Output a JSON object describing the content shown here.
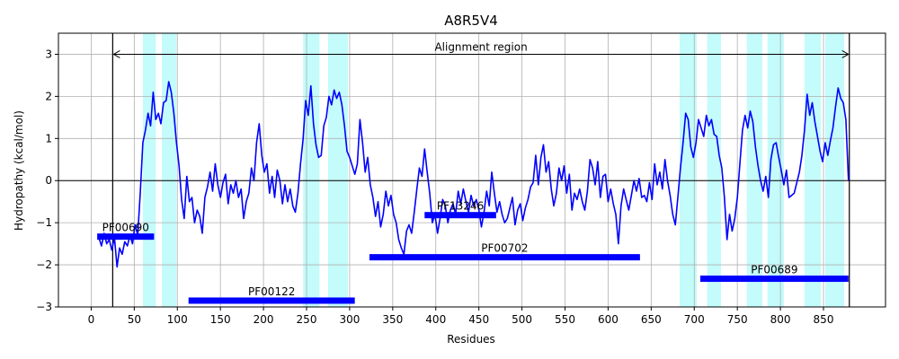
{
  "chart_data": {
    "type": "line",
    "title": "A8R5V4",
    "xlabel": "Residues",
    "ylabel": "Hydropathy (kcal/mol)",
    "xlim": [
      -38,
      922
    ],
    "ylim": [
      -3,
      3.5
    ],
    "xticks": [
      0,
      50,
      100,
      150,
      200,
      250,
      300,
      350,
      400,
      450,
      500,
      550,
      600,
      650,
      700,
      750,
      800,
      850
    ],
    "yticks": [
      -3,
      -2,
      -1,
      0,
      1,
      2,
      3
    ],
    "grid": true,
    "zero_line": true,
    "series": [
      {
        "color": "#0000ff",
        "points": [
          [
            9,
            -1.35
          ],
          [
            12,
            -1.55
          ],
          [
            15,
            -1.25
          ],
          [
            18,
            -1.5
          ],
          [
            21,
            -1.4
          ],
          [
            24,
            -1.65
          ],
          [
            27,
            -1.35
          ],
          [
            30,
            -2.05
          ],
          [
            33,
            -1.6
          ],
          [
            36,
            -1.75
          ],
          [
            39,
            -1.45
          ],
          [
            42,
            -1.55
          ],
          [
            45,
            -1.3
          ],
          [
            48,
            -1.5
          ],
          [
            51,
            -1.05
          ],
          [
            54,
            -1.3
          ],
          [
            57,
            -0.3
          ],
          [
            60,
            0.9
          ],
          [
            63,
            1.2
          ],
          [
            66,
            1.6
          ],
          [
            69,
            1.3
          ],
          [
            72,
            2.1
          ],
          [
            75,
            1.45
          ],
          [
            78,
            1.6
          ],
          [
            81,
            1.35
          ],
          [
            84,
            1.85
          ],
          [
            87,
            1.9
          ],
          [
            90,
            2.35
          ],
          [
            93,
            2.1
          ],
          [
            96,
            1.6
          ],
          [
            99,
            0.9
          ],
          [
            102,
            0.35
          ],
          [
            105,
            -0.45
          ],
          [
            108,
            -0.9
          ],
          [
            111,
            0.1
          ],
          [
            114,
            -0.5
          ],
          [
            117,
            -0.4
          ],
          [
            120,
            -1.0
          ],
          [
            123,
            -0.7
          ],
          [
            126,
            -0.85
          ],
          [
            129,
            -1.25
          ],
          [
            132,
            -0.4
          ],
          [
            135,
            -0.15
          ],
          [
            138,
            0.2
          ],
          [
            141,
            -0.25
          ],
          [
            144,
            0.4
          ],
          [
            147,
            -0.1
          ],
          [
            150,
            -0.4
          ],
          [
            153,
            -0.05
          ],
          [
            156,
            0.15
          ],
          [
            159,
            -0.55
          ],
          [
            162,
            -0.1
          ],
          [
            165,
            -0.3
          ],
          [
            168,
            0.0
          ],
          [
            171,
            -0.4
          ],
          [
            174,
            -0.2
          ],
          [
            177,
            -0.9
          ],
          [
            180,
            -0.5
          ],
          [
            183,
            -0.3
          ],
          [
            186,
            0.3
          ],
          [
            189,
            0.0
          ],
          [
            192,
            0.9
          ],
          [
            195,
            1.35
          ],
          [
            198,
            0.6
          ],
          [
            201,
            0.2
          ],
          [
            204,
            0.4
          ],
          [
            207,
            -0.3
          ],
          [
            210,
            0.1
          ],
          [
            213,
            -0.4
          ],
          [
            216,
            0.25
          ],
          [
            219,
            0.0
          ],
          [
            222,
            -0.55
          ],
          [
            225,
            -0.1
          ],
          [
            228,
            -0.5
          ],
          [
            231,
            -0.2
          ],
          [
            234,
            -0.6
          ],
          [
            237,
            -0.75
          ],
          [
            240,
            -0.3
          ],
          [
            243,
            0.4
          ],
          [
            246,
            1.0
          ],
          [
            249,
            1.9
          ],
          [
            252,
            1.55
          ],
          [
            255,
            2.25
          ],
          [
            258,
            1.35
          ],
          [
            261,
            0.85
          ],
          [
            264,
            0.55
          ],
          [
            267,
            0.6
          ],
          [
            270,
            1.3
          ],
          [
            273,
            1.5
          ],
          [
            276,
            2.0
          ],
          [
            279,
            1.8
          ],
          [
            282,
            2.15
          ],
          [
            285,
            1.95
          ],
          [
            288,
            2.1
          ],
          [
            291,
            1.8
          ],
          [
            294,
            1.3
          ],
          [
            297,
            0.7
          ],
          [
            300,
            0.55
          ],
          [
            303,
            0.35
          ],
          [
            306,
            0.15
          ],
          [
            309,
            0.4
          ],
          [
            312,
            1.45
          ],
          [
            315,
            0.9
          ],
          [
            318,
            0.2
          ],
          [
            321,
            0.55
          ],
          [
            324,
            -0.1
          ],
          [
            327,
            -0.4
          ],
          [
            330,
            -0.85
          ],
          [
            333,
            -0.5
          ],
          [
            336,
            -1.1
          ],
          [
            339,
            -0.8
          ],
          [
            342,
            -0.25
          ],
          [
            345,
            -0.6
          ],
          [
            348,
            -0.35
          ],
          [
            351,
            -0.8
          ],
          [
            354,
            -1.0
          ],
          [
            357,
            -1.4
          ],
          [
            360,
            -1.6
          ],
          [
            363,
            -1.75
          ],
          [
            366,
            -1.2
          ],
          [
            369,
            -1.05
          ],
          [
            372,
            -1.25
          ],
          [
            375,
            -0.75
          ],
          [
            378,
            -0.2
          ],
          [
            381,
            0.3
          ],
          [
            384,
            0.1
          ],
          [
            387,
            0.75
          ],
          [
            390,
            0.2
          ],
          [
            393,
            -0.3
          ],
          [
            396,
            -1.0
          ],
          [
            399,
            -0.8
          ],
          [
            402,
            -1.25
          ],
          [
            405,
            -0.9
          ],
          [
            408,
            -0.45
          ],
          [
            411,
            -0.6
          ],
          [
            414,
            -1.0
          ],
          [
            417,
            -0.7
          ],
          [
            420,
            -0.55
          ],
          [
            423,
            -0.8
          ],
          [
            426,
            -0.25
          ],
          [
            429,
            -0.55
          ],
          [
            432,
            -0.2
          ],
          [
            435,
            -0.5
          ],
          [
            438,
            -0.75
          ],
          [
            441,
            -0.35
          ],
          [
            444,
            -0.6
          ],
          [
            447,
            -0.45
          ],
          [
            450,
            -0.7
          ],
          [
            453,
            -1.1
          ],
          [
            456,
            -0.75
          ],
          [
            459,
            -0.25
          ],
          [
            462,
            -0.6
          ],
          [
            465,
            0.2
          ],
          [
            468,
            -0.3
          ],
          [
            471,
            -0.75
          ],
          [
            474,
            -0.5
          ],
          [
            477,
            -0.8
          ],
          [
            480,
            -1.0
          ],
          [
            483,
            -0.9
          ],
          [
            486,
            -0.65
          ],
          [
            489,
            -0.4
          ],
          [
            492,
            -1.05
          ],
          [
            495,
            -0.7
          ],
          [
            498,
            -0.55
          ],
          [
            501,
            -0.95
          ],
          [
            504,
            -0.65
          ],
          [
            507,
            -0.45
          ],
          [
            510,
            -0.15
          ],
          [
            513,
            -0.05
          ],
          [
            516,
            0.6
          ],
          [
            519,
            -0.1
          ],
          [
            522,
            0.55
          ],
          [
            525,
            0.85
          ],
          [
            528,
            0.2
          ],
          [
            531,
            0.45
          ],
          [
            534,
            -0.2
          ],
          [
            537,
            -0.6
          ],
          [
            540,
            -0.3
          ],
          [
            543,
            0.3
          ],
          [
            546,
            0.0
          ],
          [
            549,
            0.35
          ],
          [
            552,
            -0.3
          ],
          [
            555,
            0.15
          ],
          [
            558,
            -0.7
          ],
          [
            561,
            -0.3
          ],
          [
            564,
            -0.45
          ],
          [
            567,
            -0.2
          ],
          [
            570,
            -0.5
          ],
          [
            573,
            -0.7
          ],
          [
            576,
            -0.25
          ],
          [
            579,
            0.5
          ],
          [
            582,
            0.3
          ],
          [
            585,
            -0.1
          ],
          [
            588,
            0.45
          ],
          [
            591,
            -0.4
          ],
          [
            594,
            0.1
          ],
          [
            597,
            0.15
          ],
          [
            600,
            -0.5
          ],
          [
            603,
            -0.2
          ],
          [
            606,
            -0.55
          ],
          [
            609,
            -0.8
          ],
          [
            612,
            -1.5
          ],
          [
            615,
            -0.6
          ],
          [
            618,
            -0.2
          ],
          [
            621,
            -0.45
          ],
          [
            624,
            -0.7
          ],
          [
            627,
            -0.35
          ],
          [
            630,
            0.0
          ],
          [
            633,
            -0.25
          ],
          [
            636,
            0.05
          ],
          [
            639,
            -0.4
          ],
          [
            642,
            -0.35
          ],
          [
            645,
            -0.5
          ],
          [
            648,
            -0.05
          ],
          [
            651,
            -0.45
          ],
          [
            654,
            0.4
          ],
          [
            657,
            -0.1
          ],
          [
            660,
            0.2
          ],
          [
            663,
            -0.2
          ],
          [
            666,
            0.5
          ],
          [
            669,
            0.0
          ],
          [
            672,
            -0.35
          ],
          [
            675,
            -0.8
          ],
          [
            678,
            -1.05
          ],
          [
            681,
            -0.4
          ],
          [
            684,
            0.3
          ],
          [
            687,
            0.9
          ],
          [
            690,
            1.6
          ],
          [
            693,
            1.45
          ],
          [
            696,
            0.8
          ],
          [
            699,
            0.55
          ],
          [
            702,
            0.9
          ],
          [
            705,
            1.45
          ],
          [
            708,
            1.25
          ],
          [
            711,
            1.05
          ],
          [
            714,
            1.55
          ],
          [
            717,
            1.3
          ],
          [
            720,
            1.45
          ],
          [
            723,
            1.1
          ],
          [
            726,
            1.05
          ],
          [
            729,
            0.6
          ],
          [
            732,
            0.3
          ],
          [
            735,
            -0.4
          ],
          [
            738,
            -1.4
          ],
          [
            741,
            -0.8
          ],
          [
            744,
            -1.2
          ],
          [
            747,
            -0.9
          ],
          [
            750,
            -0.4
          ],
          [
            753,
            0.4
          ],
          [
            756,
            1.2
          ],
          [
            759,
            1.55
          ],
          [
            762,
            1.25
          ],
          [
            765,
            1.65
          ],
          [
            768,
            1.4
          ],
          [
            771,
            0.8
          ],
          [
            774,
            0.35
          ],
          [
            777,
            0.0
          ],
          [
            780,
            -0.25
          ],
          [
            783,
            0.1
          ],
          [
            786,
            -0.4
          ],
          [
            789,
            0.5
          ],
          [
            792,
            0.85
          ],
          [
            795,
            0.9
          ],
          [
            798,
            0.55
          ],
          [
            801,
            0.25
          ],
          [
            804,
            -0.1
          ],
          [
            807,
            0.25
          ],
          [
            810,
            -0.4
          ],
          [
            813,
            -0.35
          ],
          [
            816,
            -0.3
          ],
          [
            819,
            -0.05
          ],
          [
            822,
            0.2
          ],
          [
            825,
            0.6
          ],
          [
            828,
            1.2
          ],
          [
            831,
            2.05
          ],
          [
            834,
            1.55
          ],
          [
            837,
            1.85
          ],
          [
            840,
            1.4
          ],
          [
            843,
            1.05
          ],
          [
            846,
            0.7
          ],
          [
            849,
            0.45
          ],
          [
            852,
            0.9
          ],
          [
            855,
            0.6
          ],
          [
            858,
            0.95
          ],
          [
            861,
            1.25
          ],
          [
            864,
            1.75
          ],
          [
            867,
            2.2
          ],
          [
            870,
            1.95
          ],
          [
            873,
            1.85
          ],
          [
            876,
            1.45
          ],
          [
            879,
            0.0
          ]
        ]
      }
    ],
    "highlight_regions": [
      [
        60,
        75
      ],
      [
        82,
        99
      ],
      [
        246,
        265
      ],
      [
        275,
        298
      ],
      [
        683,
        703
      ],
      [
        715,
        731
      ],
      [
        761,
        779
      ],
      [
        785,
        804
      ],
      [
        828,
        847
      ],
      [
        852,
        874
      ]
    ],
    "alignment_region": {
      "label": "Alignment region",
      "start": 25,
      "end": 880,
      "y": 3.0
    },
    "domains": [
      {
        "label": "PF00690",
        "start": 7,
        "end": 73,
        "y": -1.33
      },
      {
        "label": "PF00122",
        "start": 113,
        "end": 306,
        "y": -2.85
      },
      {
        "label": "PF13246",
        "start": 387,
        "end": 470,
        "y": -0.82
      },
      {
        "label": "PF00702",
        "start": 323,
        "end": 637,
        "y": -1.82
      },
      {
        "label": "PF00689",
        "start": 707,
        "end": 879,
        "y": -2.33
      }
    ]
  }
}
